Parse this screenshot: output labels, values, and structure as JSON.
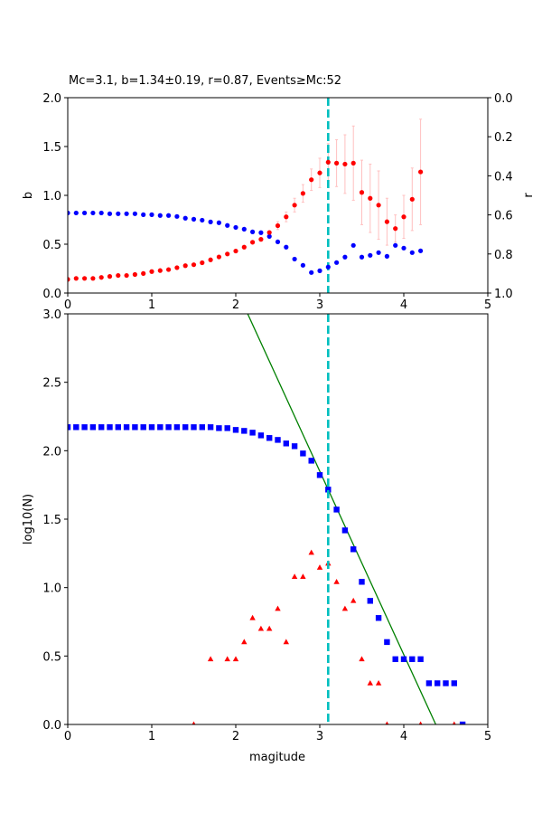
{
  "chart_data": [
    {
      "type": "scatter",
      "title": "Mc=3.1, b=1.34±0.19, r=0.87, Events≥Mc:52",
      "xlabel": "",
      "ylabel": "b",
      "ylabel_right": "r",
      "xlim": [
        0,
        5
      ],
      "ylim": [
        0,
        2
      ],
      "ylim_right": [
        1,
        0
      ],
      "right_axis_inverted": true,
      "xticks": [
        "0",
        "1",
        "2",
        "3",
        "4",
        "5"
      ],
      "yticks": [
        "0.0",
        "0.5",
        "1.0",
        "1.5",
        "2.0"
      ],
      "yticks_right": [
        "0.0",
        "0.2",
        "0.4",
        "0.6",
        "0.8",
        "1.0"
      ],
      "mc_line": 3.1,
      "x": [
        0.0,
        0.1,
        0.2,
        0.3,
        0.4,
        0.5,
        0.6,
        0.7,
        0.8,
        0.9,
        1.0,
        1.1,
        1.2,
        1.3,
        1.4,
        1.5,
        1.6,
        1.7,
        1.8,
        1.9,
        2.0,
        2.1,
        2.2,
        2.3,
        2.4,
        2.5,
        2.6,
        2.7,
        2.8,
        2.9,
        3.0,
        3.1,
        3.2,
        3.3,
        3.4,
        3.5,
        3.6,
        3.7,
        3.8,
        3.9,
        4.0,
        4.1,
        4.2
      ],
      "series": [
        {
          "axis": "left",
          "color": "#ff0000",
          "values": [
            0.14,
            0.15,
            0.15,
            0.15,
            0.16,
            0.17,
            0.18,
            0.18,
            0.19,
            0.2,
            0.22,
            0.23,
            0.24,
            0.26,
            0.28,
            0.29,
            0.31,
            0.34,
            0.37,
            0.4,
            0.43,
            0.47,
            0.52,
            0.55,
            0.62,
            0.69,
            0.78,
            0.9,
            1.02,
            1.16,
            1.23,
            1.34,
            1.33,
            1.32,
            1.33,
            1.03,
            0.97,
            0.9,
            0.73,
            0.66,
            0.78,
            0.96,
            1.24
          ],
          "errors": [
            0,
            0,
            0,
            0,
            0,
            0,
            0,
            0,
            0,
            0,
            0,
            0,
            0,
            0,
            0,
            0,
            0,
            0,
            0,
            0,
            0,
            0,
            0,
            0,
            0,
            0.04,
            0.05,
            0.07,
            0.09,
            0.11,
            0.15,
            0.19,
            0.24,
            0.3,
            0.38,
            0.33,
            0.35,
            0.35,
            0.24,
            0.14,
            0.22,
            0.32,
            0.54
          ],
          "error_color": "#ffc0c0"
        },
        {
          "axis": "right",
          "color": "#0000ff",
          "values": [
            0.59,
            0.59,
            0.59,
            0.59,
            0.59,
            0.594,
            0.594,
            0.594,
            0.594,
            0.599,
            0.599,
            0.603,
            0.603,
            0.608,
            0.617,
            0.622,
            0.627,
            0.636,
            0.64,
            0.654,
            0.664,
            0.673,
            0.687,
            0.691,
            0.71,
            0.738,
            0.765,
            0.826,
            0.858,
            0.895,
            0.886,
            0.867,
            0.844,
            0.816,
            0.756,
            0.816,
            0.807,
            0.793,
            0.812,
            0.756,
            0.77,
            0.793,
            0.784
          ]
        }
      ]
    },
    {
      "type": "scatter",
      "title": "",
      "xlabel": "magitude",
      "ylabel": "log10(N)",
      "xlim": [
        0,
        5
      ],
      "ylim": [
        0,
        3
      ],
      "xticks": [
        "0",
        "1",
        "2",
        "3",
        "4",
        "5"
      ],
      "yticks": [
        "0.0",
        "0.5",
        "1.0",
        "1.5",
        "2.0",
        "2.5",
        "3.0"
      ],
      "mc_line": 3.1,
      "fit_line": {
        "a": 5.87,
        "b": 1.34,
        "color": "#008000"
      },
      "series": [
        {
          "marker": "square",
          "color": "#0000ff",
          "x": [
            0.0,
            0.1,
            0.2,
            0.3,
            0.4,
            0.5,
            0.6,
            0.7,
            0.8,
            0.9,
            1.0,
            1.1,
            1.2,
            1.3,
            1.4,
            1.5,
            1.6,
            1.7,
            1.8,
            1.9,
            2.0,
            2.1,
            2.2,
            2.3,
            2.4,
            2.5,
            2.6,
            2.7,
            2.8,
            2.9,
            3.0,
            3.1,
            3.2,
            3.3,
            3.4,
            3.5,
            3.6,
            3.7,
            3.8,
            3.9,
            4.0,
            4.1,
            4.2,
            4.3,
            4.4,
            4.5,
            4.6,
            4.7
          ],
          "values": [
            2.172,
            2.172,
            2.172,
            2.172,
            2.172,
            2.172,
            2.172,
            2.172,
            2.172,
            2.172,
            2.172,
            2.172,
            2.172,
            2.172,
            2.172,
            2.172,
            2.172,
            2.172,
            2.165,
            2.165,
            2.152,
            2.145,
            2.132,
            2.112,
            2.093,
            2.079,
            2.053,
            2.033,
            1.98,
            1.927,
            1.822,
            1.716,
            1.57,
            1.418,
            1.28,
            1.042,
            0.903,
            0.778,
            0.602,
            0.477,
            0.477,
            0.477,
            0.477,
            0.301,
            0.301,
            0.301,
            0.301,
            0.0
          ]
        },
        {
          "marker": "triangle",
          "color": "#ff0000",
          "x": [
            1.5,
            1.7,
            1.9,
            2.0,
            2.1,
            2.2,
            2.3,
            2.4,
            2.5,
            2.6,
            2.7,
            2.8,
            2.9,
            3.0,
            3.1,
            3.2,
            3.3,
            3.4,
            3.5,
            3.6,
            3.7,
            3.8,
            4.2,
            4.6
          ],
          "values": [
            0.0,
            0.477,
            0.477,
            0.477,
            0.602,
            0.778,
            0.699,
            0.699,
            0.845,
            0.602,
            1.079,
            1.079,
            1.255,
            1.146,
            1.176,
            1.041,
            0.845,
            0.903,
            0.477,
            0.301,
            0.301,
            0.0,
            0.0,
            0.0
          ]
        }
      ]
    }
  ],
  "colors": {
    "mc_line": "#00bfbf"
  }
}
